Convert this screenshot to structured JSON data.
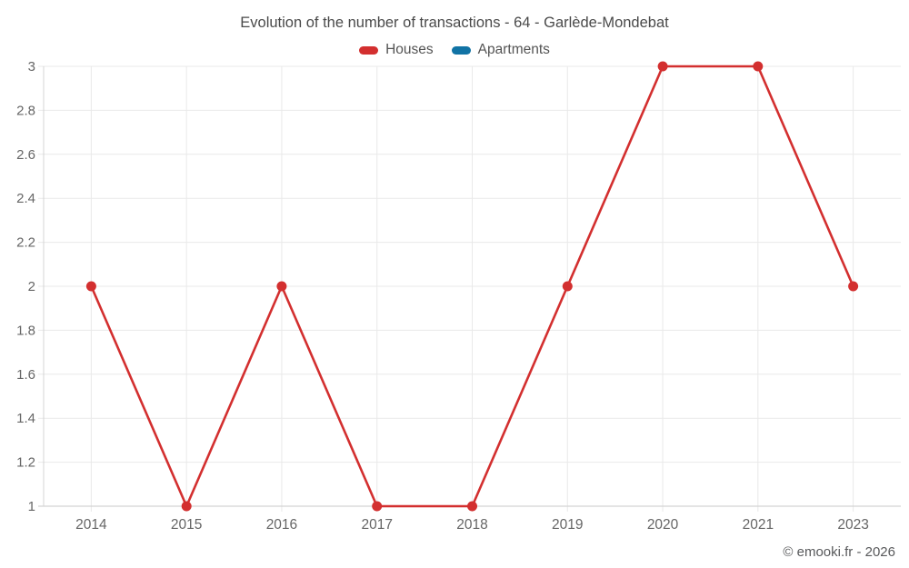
{
  "title": "Evolution of the number of transactions - 64 - Garlède-Mondebat",
  "legend": {
    "items": [
      {
        "label": "Houses",
        "color": "#d32f2f"
      },
      {
        "label": "Apartments",
        "color": "#1173a5"
      }
    ]
  },
  "copyright": "© emooki.fr - 2026",
  "chart_data": {
    "type": "line",
    "title": "Evolution of the number of transactions - 64 - Garlède-Mondebat",
    "categories": [
      "2014",
      "2015",
      "2016",
      "2017",
      "2018",
      "2019",
      "2020",
      "2021",
      "2023"
    ],
    "series": [
      {
        "name": "Houses",
        "color": "#d32f2f",
        "values": [
          2,
          1,
          2,
          1,
          1,
          2,
          3,
          3,
          2
        ]
      },
      {
        "name": "Apartments",
        "color": "#1173a5",
        "values": []
      }
    ],
    "xlabel": "",
    "ylabel": "",
    "ylim": [
      1,
      3
    ],
    "yticks": [
      "1",
      "1.2",
      "1.4",
      "1.6",
      "1.8",
      "2",
      "2.2",
      "2.4",
      "2.6",
      "2.8",
      "3"
    ],
    "grid": true,
    "legend_position": "top",
    "colors": {
      "grid": "#e9e9e9",
      "axis": "#d4d4d4",
      "tick_label": "#666666"
    }
  }
}
